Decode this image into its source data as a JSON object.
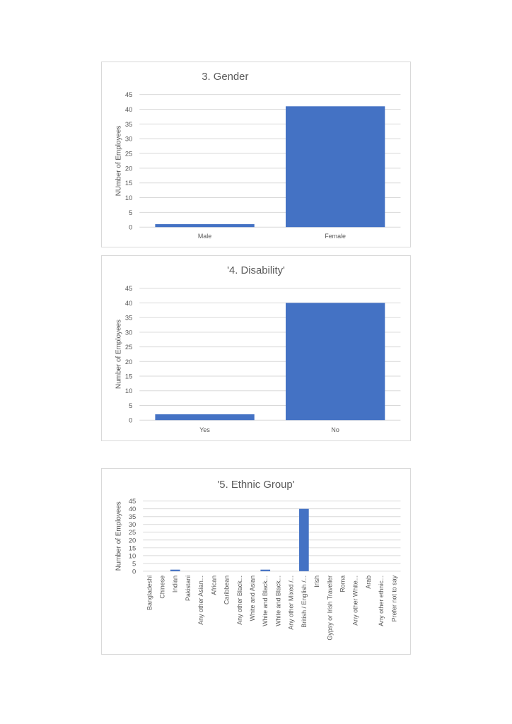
{
  "bar_color": "#4472c4",
  "grid_color": "#d9d9d9",
  "chart_data": [
    {
      "type": "bar",
      "title": "3. Gender",
      "ylabel": "NUmber of Employees",
      "xlabel": "",
      "ylim": [
        0,
        45
      ],
      "yticks": [
        0,
        5,
        10,
        15,
        20,
        25,
        30,
        35,
        40,
        45
      ],
      "grid": true,
      "categories": [
        "Male",
        "Female"
      ],
      "values": [
        1,
        41
      ]
    },
    {
      "type": "bar",
      "title": "'4. Disability'",
      "ylabel": "Number of Employees",
      "xlabel": "",
      "ylim": [
        0,
        45
      ],
      "yticks": [
        0,
        5,
        10,
        15,
        20,
        25,
        30,
        35,
        40,
        45
      ],
      "grid": true,
      "categories": [
        "Yes",
        "No"
      ],
      "values": [
        2,
        40
      ]
    },
    {
      "type": "bar",
      "title": "'5. Ethnic Group'",
      "ylabel": "Number of Employees",
      "xlabel": "",
      "ylim": [
        0,
        45
      ],
      "yticks": [
        0,
        5,
        10,
        15,
        20,
        25,
        30,
        35,
        40,
        45
      ],
      "grid": true,
      "categories": [
        "Bangladeshi",
        "Chinese",
        "Indian",
        "Pakistani",
        "Any other Asian...",
        "African",
        "Caribbean",
        "Any other Black...",
        "White and Asian",
        "White and Black...",
        "White and Black...",
        "Any other Mixed /...",
        "British / English /...",
        "Irish",
        "Gypsy or Irish Traveller",
        "Roma",
        "Any other White...",
        "Arab",
        "Any other ethnic...",
        "Prefer not to say"
      ],
      "values": [
        0,
        0,
        1,
        0,
        0,
        0,
        0,
        0,
        0,
        1,
        0,
        0,
        40,
        0,
        0,
        0,
        0,
        0,
        0,
        0
      ]
    }
  ]
}
